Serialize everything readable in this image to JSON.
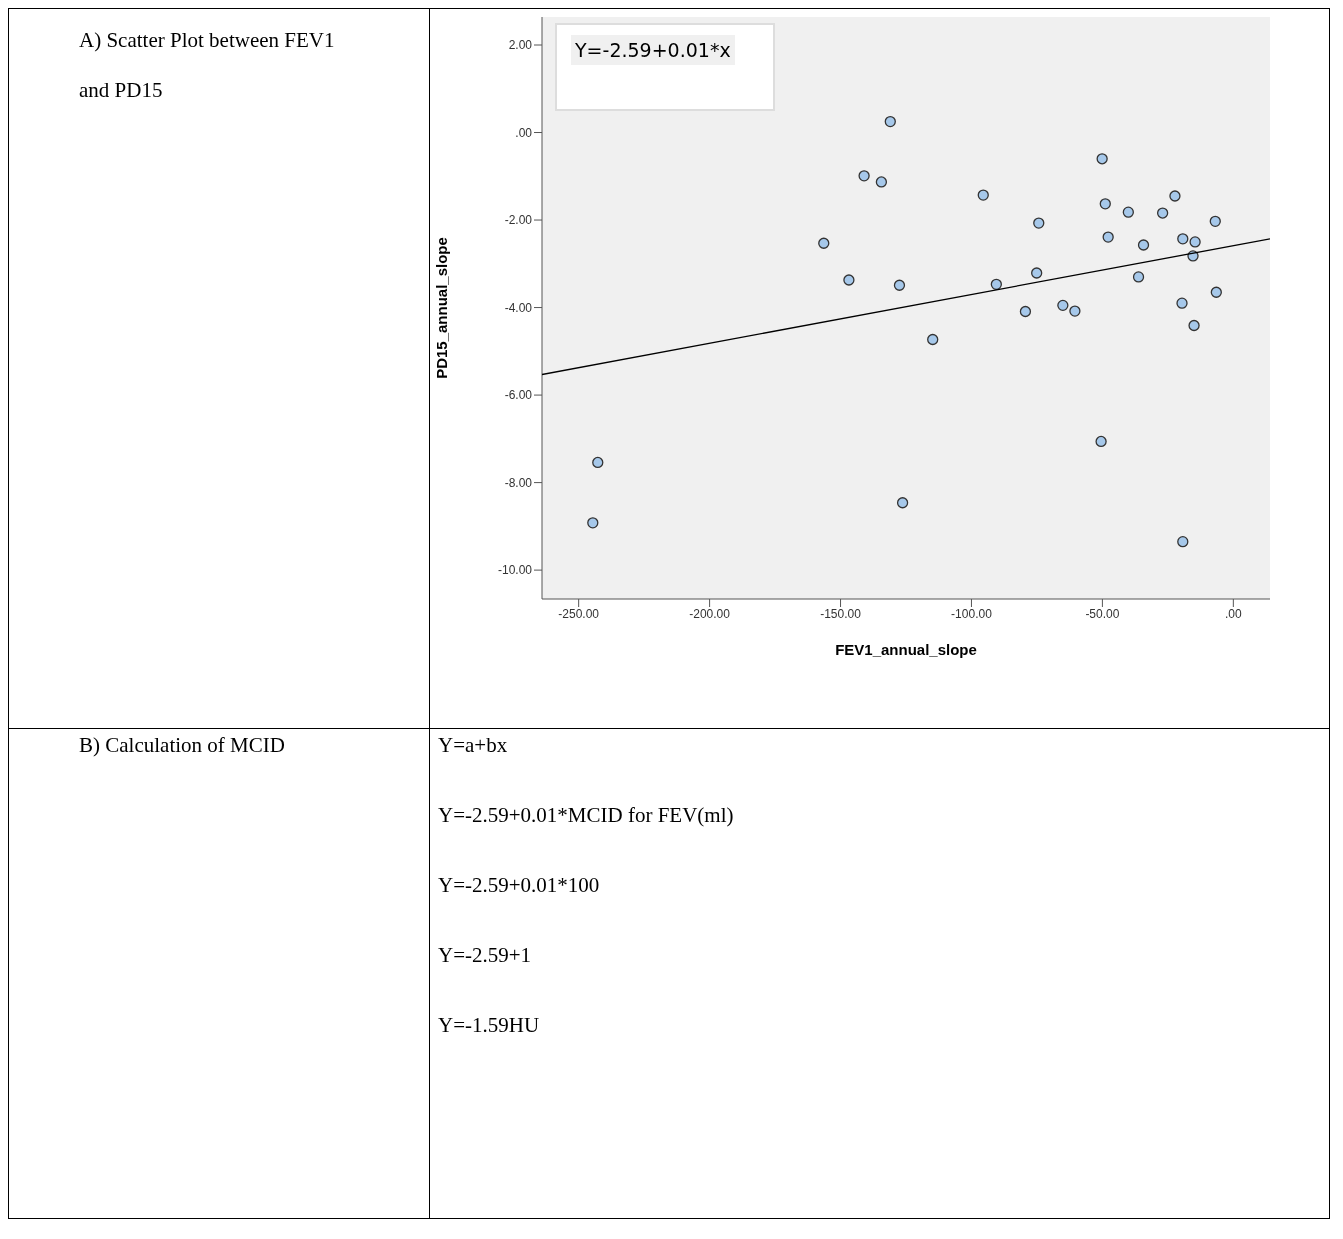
{
  "chart_data": {
    "type": "scatter",
    "title": "A) Scatter Plot between FEV1 and PD15",
    "xlabel": "FEV1_annual_slope",
    "ylabel": "PD15_annual_slope",
    "annotations": [
      "Y=-2.59+0.01*x",
      "B) Calculation of MCID",
      "Y=a+bx",
      "Y=-2.59+0.01*MCID for FEV(ml)",
      "Y=-2.59+0.01*100",
      "Y=-2.59+1",
      "Y=-1.59HU"
    ],
    "xlim": [
      -264,
      14
    ],
    "ylim": [
      -10.66,
      2.64
    ],
    "xticks": [
      {
        "value": -250,
        "label": "-250.00"
      },
      {
        "value": -200,
        "label": "-200.00"
      },
      {
        "value": -150,
        "label": "-150.00"
      },
      {
        "value": -100,
        "label": "-100.00"
      },
      {
        "value": -50,
        "label": "-50.00"
      },
      {
        "value": 0,
        "label": ".00"
      }
    ],
    "yticks": [
      {
        "value": -10,
        "label": "-10.00"
      },
      {
        "value": -8,
        "label": "-8.00"
      },
      {
        "value": -6,
        "label": "-6.00"
      },
      {
        "value": -4,
        "label": "-4.00"
      },
      {
        "value": -2,
        "label": "-2.00"
      },
      {
        "value": 0,
        "label": ".00"
      },
      {
        "value": 2,
        "label": "2.00"
      }
    ],
    "grid": false,
    "series": [
      {
        "marker": "circle",
        "color": "#a6c8ea",
        "x": [
          -141,
          -134.4,
          -156.4,
          -146.8,
          -131,
          -95.5,
          -50.1,
          -74.3,
          -48.9,
          -40.1,
          -27,
          -22.3,
          -6.9,
          -47.8,
          -34.3,
          -19.3,
          -14.6,
          -15.4,
          -127.5,
          -90.5,
          -75.1,
          -36.2,
          -6.5,
          -79.4,
          -65.1,
          -60.5,
          -19.6,
          -15,
          -114.8,
          -50.5,
          -126.3,
          -19.3,
          -242.7,
          -244.6
        ],
        "values": [
          -0.99,
          -1.13,
          -2.53,
          -3.37,
          0.25,
          -1.43,
          -0.6,
          -2.07,
          -1.63,
          -1.82,
          -1.84,
          -1.45,
          -2.03,
          -2.39,
          -2.57,
          -2.43,
          -2.5,
          -2.82,
          -3.49,
          -3.47,
          -3.21,
          -3.3,
          -3.65,
          -4.09,
          -3.95,
          -4.08,
          -3.9,
          -4.41,
          -4.73,
          -7.06,
          -8.46,
          -9.35,
          -7.54,
          -8.92
        ]
      },
      {
        "type": "line",
        "marker": "none",
        "color": "#000000",
        "line_style": "solid",
        "x": [
          -264,
          14
        ],
        "values": [
          -5.53,
          -2.43
        ]
      }
    ]
  }
}
